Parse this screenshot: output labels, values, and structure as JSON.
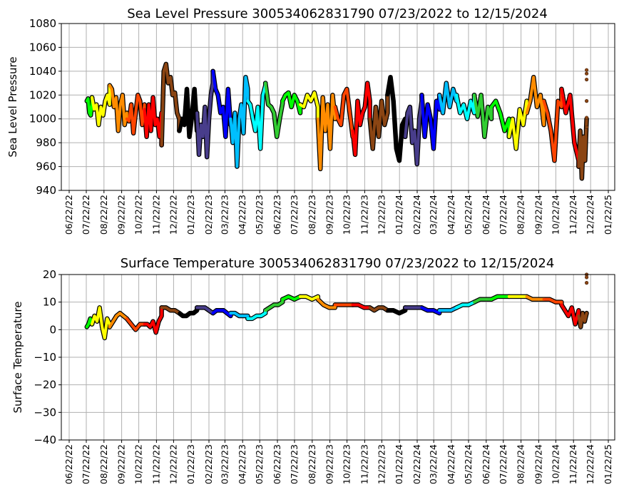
{
  "chart_data": [
    {
      "type": "line",
      "title": "Sea Level Pressure 300534062831790  07/23/2022 to 12/15/2024",
      "xlabel": "",
      "ylabel": "Sea Level Pressure",
      "ylim": [
        940,
        1080
      ],
      "yticks": [
        940,
        960,
        980,
        1000,
        1020,
        1040,
        1060,
        1080
      ],
      "xticks": [
        "06/22/22",
        "07/22/22",
        "08/22/22",
        "09/22/22",
        "10/22/22",
        "11/22/22",
        "12/22/22",
        "01/22/23",
        "02/22/23",
        "03/22/23",
        "04/22/23",
        "05/22/23",
        "06/22/23",
        "07/22/23",
        "08/22/23",
        "09/22/23",
        "10/22/23",
        "11/22/23",
        "12/22/23",
        "01/22/24",
        "02/22/24",
        "03/22/24",
        "04/22/24",
        "05/22/24",
        "06/22/24",
        "07/22/24",
        "08/22/24",
        "09/22/24",
        "10/22/24",
        "11/22/24",
        "12/22/24",
        "01/22/25"
      ],
      "grid": true,
      "end_date": "2024-12-15",
      "segments": [
        {
          "start": "2022-07-23",
          "color": "#00FF00",
          "values": [
            1015,
            1017,
            1005,
            1003,
            1012
          ]
        },
        {
          "start": "2022-08-01",
          "color": "#FFFF00",
          "values": [
            1018,
            1008,
            1012,
            995,
            1010,
            1003,
            1015,
            1020,
            1012
          ]
        },
        {
          "start": "2022-09-01",
          "color": "#FF8C00",
          "values": [
            1028,
            1025,
            1010,
            1018,
            990,
            1012,
            1020,
            995,
            1005
          ]
        },
        {
          "start": "2022-10-01",
          "color": "#FF4500",
          "values": [
            1000,
            998,
            1012,
            988,
            1005,
            1020,
            1015,
            995,
            1012
          ]
        },
        {
          "start": "2022-11-01",
          "color": "#FF0000",
          "values": [
            1008,
            985,
            1012,
            990,
            1018,
            995,
            1000,
            985,
            1005
          ]
        },
        {
          "start": "2022-12-01",
          "color": "#8B4513",
          "values": [
            978,
            1040,
            1046,
            1030,
            1035,
            1020,
            1022,
            1005,
            1000
          ]
        },
        {
          "start": "2023-01-01",
          "color": "#000000",
          "values": [
            990,
            1000,
            995,
            1025,
            985,
            1002,
            1025,
            990
          ]
        },
        {
          "start": "2023-02-01",
          "color": "#483D8B",
          "values": [
            1005,
            970,
            995,
            985,
            1010,
            968,
            1000,
            1020,
            1030
          ]
        },
        {
          "start": "2023-03-01",
          "color": "#0000FF",
          "values": [
            1040,
            1025,
            1020,
            1005,
            1010,
            985,
            1025,
            995
          ]
        },
        {
          "start": "2023-04-01",
          "color": "#00BFFF",
          "values": [
            1000,
            980,
            1005,
            960,
            1000,
            1012,
            988,
            1035,
            1025
          ]
        },
        {
          "start": "2023-05-01",
          "color": "#00FFFF",
          "values": [
            1015,
            1012,
            1000,
            990,
            1010,
            975,
            1020,
            1028
          ]
        },
        {
          "start": "2023-06-01",
          "color": "#32CD32",
          "values": [
            1030,
            1012,
            1010,
            1005,
            985,
            1000,
            1013
          ]
        },
        {
          "start": "2023-07-01",
          "color": "#00FF00",
          "values": [
            1015,
            1020,
            1022,
            1010,
            1020,
            1015,
            1005
          ]
        },
        {
          "start": "2023-08-01",
          "color": "#FFFF00",
          "values": [
            1012,
            1010,
            1020,
            1015,
            1022,
            1010
          ]
        },
        {
          "start": "2023-09-01",
          "color": "#FF8C00",
          "values": [
            1000,
            958,
            1018,
            990,
            1012,
            975,
            1020,
            1000
          ]
        },
        {
          "start": "2023-10-01",
          "color": "#FF4500",
          "values": [
            1010,
            1000,
            995,
            1020,
            1025,
            1005,
            985
          ]
        },
        {
          "start": "2023-11-01",
          "color": "#FF0000",
          "values": [
            990,
            970,
            1015,
            995,
            1005,
            1010,
            1030,
            1015
          ]
        },
        {
          "start": "2023-12-01",
          "color": "#8B4513",
          "values": [
            1000,
            975,
            1010,
            985,
            1015,
            995,
            1005
          ]
        },
        {
          "start": "2024-01-01",
          "color": "#000000",
          "values": [
            1020,
            1035,
            1015,
            975,
            965,
            995,
            1000
          ]
        },
        {
          "start": "2024-02-01",
          "color": "#483D8B",
          "values": [
            985,
            1005,
            1010,
            980,
            990,
            962,
            1000,
            1015
          ]
        },
        {
          "start": "2024-03-01",
          "color": "#0000FF",
          "values": [
            1020,
            985,
            1012,
            1000,
            975,
            1015,
            1008
          ]
        },
        {
          "start": "2024-04-01",
          "color": "#00BFFF",
          "values": [
            1020,
            1005,
            1030,
            1010,
            1025,
            1015
          ]
        },
        {
          "start": "2024-05-01",
          "color": "#00FFFF",
          "values": [
            1020,
            1005,
            1012,
            1000,
            1015,
            1005
          ]
        },
        {
          "start": "2024-06-01",
          "color": "#32CD32",
          "values": [
            1020,
            1002,
            1020,
            985,
            1010,
            1000
          ]
        },
        {
          "start": "2024-07-01",
          "color": "#00FF00",
          "values": [
            1010,
            1015,
            1005,
            990,
            1000
          ]
        },
        {
          "start": "2024-08-01",
          "color": "#FFFF00",
          "values": [
            985,
            1000,
            975,
            1008,
            995,
            1015
          ]
        },
        {
          "start": "2024-09-01",
          "color": "#FF8C00",
          "values": [
            1005,
            1015,
            1035,
            1010,
            1020,
            995
          ]
        },
        {
          "start": "2024-10-01",
          "color": "#FF4500",
          "values": [
            1015,
            1005,
            990,
            965,
            1015,
            1010
          ]
        },
        {
          "start": "2024-11-01",
          "color": "#FF0000",
          "values": [
            1025,
            1005,
            1020,
            980,
            965
          ]
        },
        {
          "start": "2024-12-01",
          "color": "#8B4513",
          "values": [
            960,
            990,
            950,
            985,
            965,
            1000
          ]
        }
      ],
      "outliers": {
        "date": "2024-12-15",
        "color": "#8B4513",
        "values": [
          1041,
          1038,
          1033,
          1015,
          1001,
          993
        ]
      }
    },
    {
      "type": "line",
      "title": "Surface Temperature 300534062831790  07/23/2022 to 12/15/2024",
      "xlabel": "",
      "ylabel": "Surface Temperature",
      "ylim": [
        -40,
        20
      ],
      "yticks": [
        -40,
        -30,
        -20,
        -10,
        0,
        10,
        20
      ],
      "xticks": [
        "06/22/22",
        "07/22/22",
        "08/22/22",
        "09/22/22",
        "10/22/22",
        "11/22/22",
        "12/22/22",
        "01/22/23",
        "02/22/23",
        "03/22/23",
        "04/22/23",
        "05/22/23",
        "06/22/23",
        "07/22/23",
        "08/22/23",
        "09/22/23",
        "10/22/23",
        "11/22/23",
        "12/22/23",
        "01/22/24",
        "02/22/24",
        "03/22/24",
        "04/22/24",
        "05/22/24",
        "06/22/24",
        "07/22/24",
        "08/22/24",
        "09/22/24",
        "10/22/24",
        "11/22/24",
        "12/22/24",
        "01/22/25"
      ],
      "grid": true,
      "end_date": "2024-12-15",
      "segments": [
        {
          "start": "2022-07-23",
          "color": "#00FF00",
          "values": [
            1,
            2,
            4,
            2
          ]
        },
        {
          "start": "2022-08-01",
          "color": "#FFFF00",
          "values": [
            2,
            5,
            3,
            8,
            1,
            -3,
            4,
            2
          ]
        },
        {
          "start": "2022-09-01",
          "color": "#FF8C00",
          "values": [
            1,
            3,
            5,
            6,
            5,
            4
          ]
        },
        {
          "start": "2022-10-01",
          "color": "#FF4500",
          "values": [
            4,
            2,
            0,
            2,
            2
          ]
        },
        {
          "start": "2022-11-01",
          "color": "#FF0000",
          "values": [
            2,
            2,
            1,
            3,
            -1,
            3,
            5
          ]
        },
        {
          "start": "2022-12-01",
          "color": "#8B4513",
          "values": [
            8,
            8,
            7,
            7,
            6
          ]
        },
        {
          "start": "2023-01-01",
          "color": "#000000",
          "values": [
            6,
            5,
            5,
            6,
            6,
            7
          ]
        },
        {
          "start": "2023-02-01",
          "color": "#483D8B",
          "values": [
            8,
            8,
            8,
            7,
            6
          ]
        },
        {
          "start": "2023-03-01",
          "color": "#0000FF",
          "values": [
            6,
            7,
            7,
            7,
            6,
            5
          ]
        },
        {
          "start": "2023-04-01",
          "color": "#00BFFF",
          "values": [
            6,
            6,
            5,
            5,
            5
          ]
        },
        {
          "start": "2023-05-01",
          "color": "#00FFFF",
          "values": [
            4,
            4,
            5,
            5,
            6
          ]
        },
        {
          "start": "2023-06-01",
          "color": "#32CD32",
          "values": [
            7,
            8,
            9,
            9,
            10
          ]
        },
        {
          "start": "2023-07-01",
          "color": "#00FF00",
          "values": [
            11,
            12,
            11,
            12
          ]
        },
        {
          "start": "2023-08-01",
          "color": "#FFFF00",
          "values": [
            12,
            12,
            11,
            12
          ]
        },
        {
          "start": "2023-09-01",
          "color": "#FF8C00",
          "values": [
            11,
            9,
            8,
            8
          ]
        },
        {
          "start": "2023-10-01",
          "color": "#FF4500",
          "values": [
            9,
            9,
            9,
            9
          ]
        },
        {
          "start": "2023-11-01",
          "color": "#FF0000",
          "values": [
            9,
            9,
            8,
            8
          ]
        },
        {
          "start": "2023-12-01",
          "color": "#8B4513",
          "values": [
            8,
            7,
            8,
            8,
            7
          ]
        },
        {
          "start": "2024-01-01",
          "color": "#000000",
          "values": [
            7,
            7,
            6,
            7
          ]
        },
        {
          "start": "2024-02-01",
          "color": "#483D8B",
          "values": [
            8,
            8,
            8,
            8
          ]
        },
        {
          "start": "2024-03-01",
          "color": "#0000FF",
          "values": [
            8,
            7,
            7,
            6
          ]
        },
        {
          "start": "2024-04-01",
          "color": "#00BFFF",
          "values": [
            7,
            7,
            7,
            8
          ]
        },
        {
          "start": "2024-05-01",
          "color": "#00FFFF",
          "values": [
            8,
            9,
            9,
            10
          ]
        },
        {
          "start": "2024-06-01",
          "color": "#32CD32",
          "values": [
            10,
            11,
            11,
            11
          ]
        },
        {
          "start": "2024-07-01",
          "color": "#00FF00",
          "values": [
            11,
            12,
            12,
            12
          ]
        },
        {
          "start": "2024-08-01",
          "color": "#FFFF00",
          "values": [
            12,
            12,
            12,
            12
          ]
        },
        {
          "start": "2024-09-01",
          "color": "#FF8C00",
          "values": [
            12,
            11,
            11,
            11
          ]
        },
        {
          "start": "2024-10-01",
          "color": "#FF4500",
          "values": [
            11,
            11,
            10,
            10
          ]
        },
        {
          "start": "2024-11-01",
          "color": "#FF0000",
          "values": [
            9,
            7,
            5,
            8,
            2,
            7
          ]
        },
        {
          "start": "2024-12-01",
          "color": "#8B4513",
          "values": [
            5,
            1,
            6,
            3,
            6
          ]
        }
      ],
      "outliers": {
        "date": "2024-12-15",
        "color": "#8B4513",
        "values": [
          20,
          19,
          17
        ]
      }
    }
  ]
}
